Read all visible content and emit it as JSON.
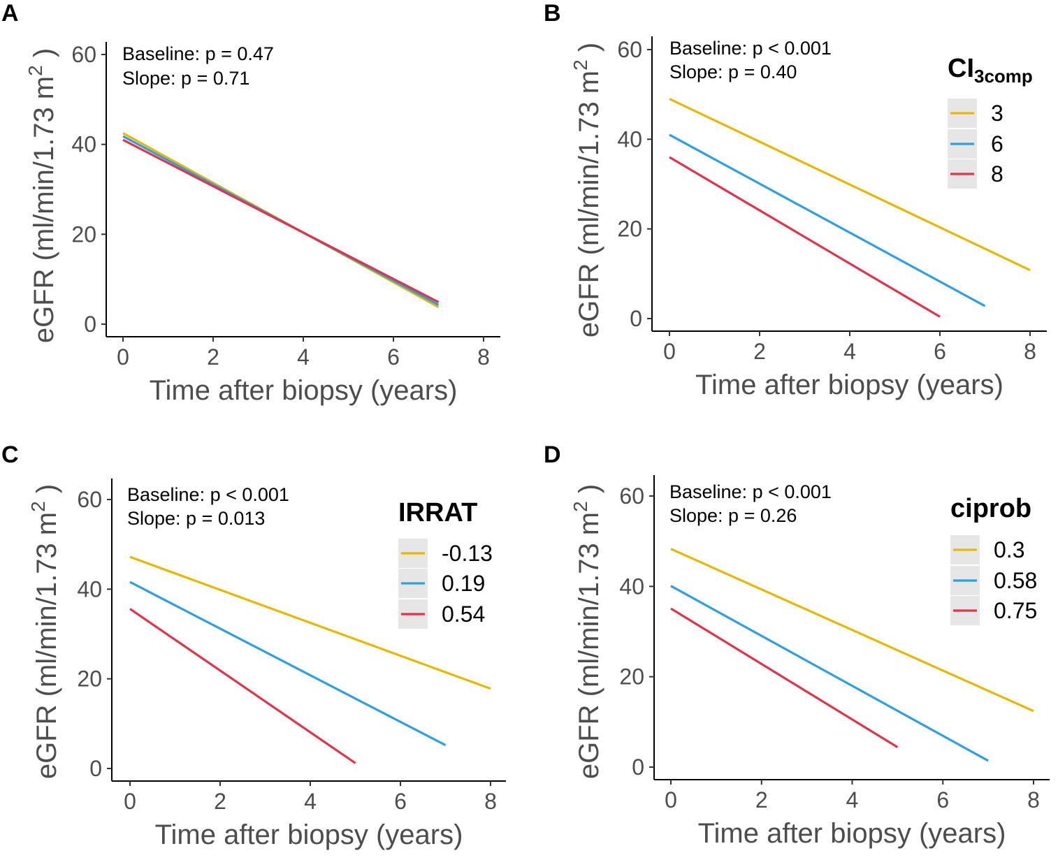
{
  "figure": {
    "y_unit_prefix": "eGFR (ml/min/1.73 m",
    "y_unit_sup": "2",
    "y_unit_suffix": " )"
  },
  "colors": {
    "yellow": "#E7B800",
    "blue": "#2E9FDF",
    "red": "#E2334B"
  },
  "chart_data": [
    {
      "panel": "A",
      "type": "line",
      "xlabel": "Time after biopsy (years)",
      "ylabel": "eGFR (ml/min/1.73 m2 )",
      "xlim": [
        -0.4,
        8.4
      ],
      "ylim": [
        -2.5,
        62.5
      ],
      "xticks": [
        "0",
        "2",
        "4",
        "6",
        "8"
      ],
      "yticks": [
        "0",
        "20",
        "40",
        "60"
      ],
      "annotations": [
        "Baseline: p = 0.47",
        "Slope: p = 0.71"
      ],
      "legend": null,
      "series": [
        {
          "name": "yellow",
          "color": "#E7B800",
          "x": [
            0,
            7
          ],
          "y": [
            42.5,
            3.8
          ]
        },
        {
          "name": "blue",
          "color": "#2E9FDF",
          "x": [
            0,
            7
          ],
          "y": [
            41.8,
            4.3
          ]
        },
        {
          "name": "red",
          "color": "#E2334B",
          "x": [
            0,
            7
          ],
          "y": [
            41.0,
            4.9
          ]
        }
      ]
    },
    {
      "panel": "B",
      "type": "line",
      "xlabel": "Time after biopsy (years)",
      "ylabel": "eGFR (ml/min/1.73 m2 )",
      "xlim": [
        -0.4,
        8.4
      ],
      "ylim": [
        -2.5,
        62.5
      ],
      "xticks": [
        "0",
        "2",
        "4",
        "6",
        "8"
      ],
      "yticks": [
        "0",
        "20",
        "40",
        "60"
      ],
      "annotations": [
        "Baseline: p < 0.001",
        "Slope: p = 0.40"
      ],
      "legend": {
        "title": "CI",
        "title_sub": "3comp",
        "position": "top-right",
        "labels": [
          "3",
          "6",
          "8"
        ]
      },
      "series": [
        {
          "name": "3",
          "color": "#E7B800",
          "x": [
            0,
            8
          ],
          "y": [
            49.0,
            10.8
          ]
        },
        {
          "name": "6",
          "color": "#2E9FDF",
          "x": [
            0,
            7
          ],
          "y": [
            41.0,
            2.8
          ]
        },
        {
          "name": "8",
          "color": "#E2334B",
          "x": [
            0,
            6
          ],
          "y": [
            36.0,
            0.4
          ]
        }
      ]
    },
    {
      "panel": "C",
      "type": "line",
      "xlabel": "Time after biopsy (years)",
      "ylabel": "eGFR (ml/min/1.73 m2 )",
      "xlim": [
        -0.4,
        8.4
      ],
      "ylim": [
        -2.5,
        62.5
      ],
      "xticks": [
        "0",
        "2",
        "4",
        "6",
        "8"
      ],
      "yticks": [
        "0",
        "20",
        "40",
        "60"
      ],
      "annotations": [
        "Baseline: p < 0.001",
        "Slope: p = 0.013"
      ],
      "legend": {
        "title": "IRRAT",
        "title_sub": "",
        "position": "top-right",
        "labels": [
          "-0.13",
          "0.19",
          "0.54"
        ]
      },
      "series": [
        {
          "name": "-0.13",
          "color": "#E7B800",
          "x": [
            0,
            8
          ],
          "y": [
            47.2,
            17.8
          ]
        },
        {
          "name": "0.19",
          "color": "#2E9FDF",
          "x": [
            0,
            7
          ],
          "y": [
            41.6,
            5.2
          ]
        },
        {
          "name": "0.54",
          "color": "#E2334B",
          "x": [
            0,
            5
          ],
          "y": [
            35.6,
            1.2
          ]
        }
      ]
    },
    {
      "panel": "D",
      "type": "line",
      "xlabel": "Time after biopsy (years)",
      "ylabel": "eGFR (ml/min/1.73 m2 )",
      "xlim": [
        -0.4,
        8.4
      ],
      "ylim": [
        -2.5,
        62.5
      ],
      "xticks": [
        "0",
        "2",
        "4",
        "6",
        "8"
      ],
      "yticks": [
        "0",
        "20",
        "40",
        "60"
      ],
      "annotations": [
        "Baseline: p < 0.001",
        "Slope: p = 0.26"
      ],
      "legend": {
        "title": "ciprob",
        "title_sub": "",
        "position": "top-right",
        "labels": [
          "0.3",
          "0.58",
          "0.75"
        ]
      },
      "series": [
        {
          "name": "0.3",
          "color": "#E7B800",
          "x": [
            0,
            8
          ],
          "y": [
            48.3,
            12.4
          ]
        },
        {
          "name": "0.58",
          "color": "#2E9FDF",
          "x": [
            0,
            7
          ],
          "y": [
            40.1,
            1.4
          ]
        },
        {
          "name": "0.75",
          "color": "#E2334B",
          "x": [
            0,
            5
          ],
          "y": [
            35.1,
            4.4
          ]
        }
      ]
    }
  ]
}
